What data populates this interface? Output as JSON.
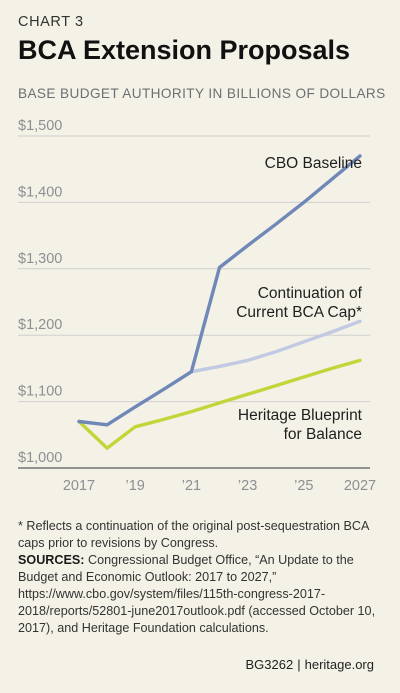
{
  "header": {
    "kicker": "CHART 3",
    "title": "BCA Extension Proposals",
    "subtitle": "BASE BUDGET AUTHORITY IN BILLIONS OF DOLLARS"
  },
  "chart_data": {
    "type": "line",
    "title": "BCA Extension Proposals",
    "ylabel": "",
    "xlabel": "",
    "xlim": [
      2017,
      2027
    ],
    "ylim": [
      1000,
      1500
    ],
    "y_ticks": [
      {
        "value": 1500,
        "label": "$1,500"
      },
      {
        "value": 1400,
        "label": "$1,400"
      },
      {
        "value": 1300,
        "label": "$1,300"
      },
      {
        "value": 1200,
        "label": "$1,200"
      },
      {
        "value": 1100,
        "label": "$1,100"
      },
      {
        "value": 1000,
        "label": "$1,000"
      }
    ],
    "x_ticks": [
      {
        "value": 2017,
        "label": "2017"
      },
      {
        "value": 2019,
        "label": "’19"
      },
      {
        "value": 2021,
        "label": "’21"
      },
      {
        "value": 2023,
        "label": "’23"
      },
      {
        "value": 2025,
        "label": "’25"
      },
      {
        "value": 2027,
        "label": "2027"
      }
    ],
    "grid": "horizontal",
    "series": [
      {
        "name": "CBO Baseline",
        "color": "#7088b8",
        "points": [
          {
            "x": 2017,
            "y": 1070
          },
          {
            "x": 2018,
            "y": 1065
          },
          {
            "x": 2019,
            "y": 1092
          },
          {
            "x": 2020,
            "y": 1118
          },
          {
            "x": 2021,
            "y": 1145
          },
          {
            "x": 2022,
            "y": 1302
          },
          {
            "x": 2023,
            "y": 1335
          },
          {
            "x": 2024,
            "y": 1367
          },
          {
            "x": 2025,
            "y": 1400
          },
          {
            "x": 2026,
            "y": 1435
          },
          {
            "x": 2027,
            "y": 1470
          }
        ]
      },
      {
        "name": "Continuation of Current BCA Cap*",
        "color": "#c2c9e3",
        "points": [
          {
            "x": 2021,
            "y": 1145
          },
          {
            "x": 2022,
            "y": 1153
          },
          {
            "x": 2023,
            "y": 1162
          },
          {
            "x": 2024,
            "y": 1175
          },
          {
            "x": 2025,
            "y": 1190
          },
          {
            "x": 2026,
            "y": 1205
          },
          {
            "x": 2027,
            "y": 1221
          }
        ]
      },
      {
        "name": "Heritage Blueprint for Balance",
        "color": "#c2d63a",
        "points": [
          {
            "x": 2017,
            "y": 1070
          },
          {
            "x": 2018,
            "y": 1030
          },
          {
            "x": 2019,
            "y": 1062
          },
          {
            "x": 2020,
            "y": 1073
          },
          {
            "x": 2021,
            "y": 1085
          },
          {
            "x": 2022,
            "y": 1098
          },
          {
            "x": 2023,
            "y": 1111
          },
          {
            "x": 2024,
            "y": 1124
          },
          {
            "x": 2025,
            "y": 1137
          },
          {
            "x": 2026,
            "y": 1150
          },
          {
            "x": 2027,
            "y": 1162
          }
        ]
      }
    ],
    "annotations": [
      {
        "lines": [
          "CBO Baseline"
        ],
        "series": "CBO Baseline"
      },
      {
        "lines": [
          "Continuation of",
          "Current BCA Cap*"
        ],
        "series": "Continuation of Current BCA Cap*"
      },
      {
        "lines": [
          "Heritage Blueprint",
          "for Balance"
        ],
        "series": "Heritage Blueprint for Balance"
      }
    ]
  },
  "notes": {
    "footnote": "* Reflects a continuation of the original post-sequestration BCA caps prior to revisions by Congress.",
    "sources_label": "SOURCES:",
    "sources_text": " Congressional Budget Office, “An Update to the Budget and Economic Outlook: 2017 to 2027,” https://www.cbo.gov/system/files/115th-congress-2017-2018/reports/52801-june2017outlook.pdf (accessed October 10, 2017), and Heritage Foundation calculations."
  },
  "footer": {
    "code": "BG3262",
    "separator": "|",
    "site": "heritage.org"
  }
}
